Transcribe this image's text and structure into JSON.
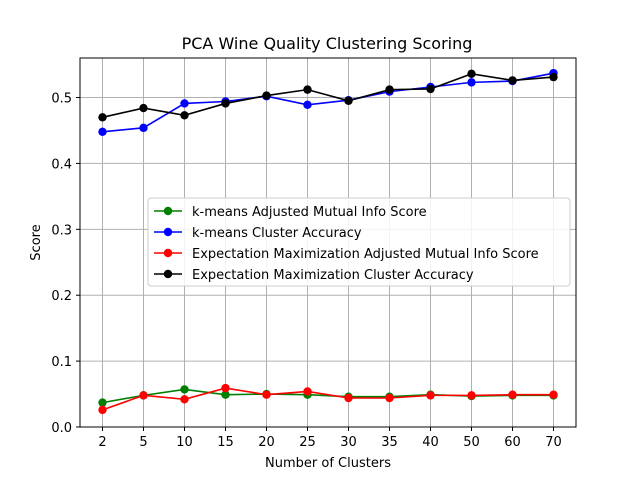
{
  "chart_data": {
    "type": "line",
    "title": "PCA Wine Quality  Clustering Scoring",
    "xlabel": "Number of Clusters",
    "ylabel": "Score",
    "categories": [
      "2",
      "5",
      "10",
      "15",
      "20",
      "25",
      "30",
      "35",
      "40",
      "50",
      "60",
      "70"
    ],
    "yticks": [
      "0.0",
      "0.1",
      "0.2",
      "0.3",
      "0.4",
      "0.5"
    ],
    "ylim": [
      0,
      0.56
    ],
    "grid": true,
    "legend_position": "center-right",
    "series": [
      {
        "name": "k-means Adjusted Mutual Info Score",
        "color": "#008000",
        "values": [
          0.037,
          0.048,
          0.057,
          0.049,
          0.05,
          0.049,
          0.046,
          0.046,
          0.049,
          0.047,
          0.048,
          0.048
        ]
      },
      {
        "name": "k-means Cluster Accuracy",
        "color": "#0000ff",
        "values": [
          0.448,
          0.454,
          0.491,
          0.494,
          0.502,
          0.489,
          0.496,
          0.509,
          0.516,
          0.523,
          0.525,
          0.537
        ]
      },
      {
        "name": "Expectation Maximization Adjusted Mutual Info Score",
        "color": "#ff0000",
        "values": [
          0.026,
          0.048,
          0.042,
          0.059,
          0.049,
          0.054,
          0.044,
          0.044,
          0.048,
          0.048,
          0.049,
          0.049
        ]
      },
      {
        "name": "Expectation Maximization Cluster Accuracy",
        "color": "#000000",
        "values": [
          0.47,
          0.484,
          0.473,
          0.491,
          0.503,
          0.512,
          0.495,
          0.512,
          0.513,
          0.536,
          0.526,
          0.531
        ]
      }
    ]
  }
}
